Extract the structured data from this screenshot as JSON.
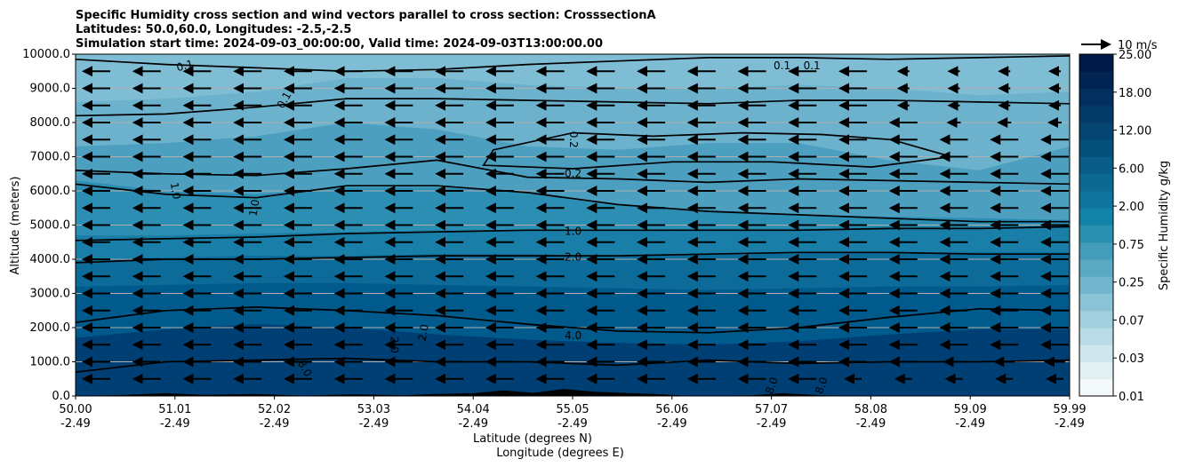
{
  "chart_data": {
    "type": "contour",
    "title": [
      "Specific Humidity cross section and wind vectors parallel to cross section: CrosssectionA",
      "Latitudes: 50.0,60.0, Longitudes: -2.5,-2.5",
      "Simulation start time: 2024-09-03_00:00:00, Valid time: 2024-09-03T13:00:00.00"
    ],
    "ylabel": "Altitude (meters)",
    "xlabel_lat": "Latitude (degrees N)",
    "xlabel_lon": "Longitude (degrees E)",
    "ylim": [
      0,
      10000
    ],
    "xlim": [
      50.0,
      59.99
    ],
    "y_ticks": [
      "0.0",
      "1000.0",
      "2000.0",
      "3000.0",
      "4000.0",
      "5000.0",
      "6000.0",
      "7000.0",
      "8000.0",
      "9000.0",
      "10000.0"
    ],
    "x_ticks": [
      {
        "lat": "50.00",
        "lon": "-2.49"
      },
      {
        "lat": "51.01",
        "lon": "-2.49"
      },
      {
        "lat": "52.02",
        "lon": "-2.49"
      },
      {
        "lat": "53.03",
        "lon": "-2.49"
      },
      {
        "lat": "54.04",
        "lon": "-2.49"
      },
      {
        "lat": "55.05",
        "lon": "-2.49"
      },
      {
        "lat": "56.06",
        "lon": "-2.49"
      },
      {
        "lat": "57.07",
        "lon": "-2.49"
      },
      {
        "lat": "58.08",
        "lon": "-2.49"
      },
      {
        "lat": "59.09",
        "lon": "-2.49"
      },
      {
        "lat": "59.99",
        "lon": "-2.49"
      }
    ],
    "grid": "horizontal",
    "colorbar": {
      "label": "Specific Humidity g/kg",
      "ticks": [
        "0.01",
        "0.03",
        "0.07",
        "0.25",
        "0.75",
        "2.00",
        "6.00",
        "12.00",
        "18.00",
        "25.00"
      ],
      "colors": [
        "#f4fafb",
        "#e2f0f3",
        "#cfe6ec",
        "#b9dbe5",
        "#a2cfdd",
        "#8ac3d5",
        "#72b6cd",
        "#5aa9c3",
        "#439cb9",
        "#2b8fb0",
        "#1382a7",
        "#0f759c",
        "#0b6992",
        "#085c87",
        "#06517c",
        "#044571",
        "#033a67",
        "#022f5d",
        "#012452",
        "#001a48"
      ]
    },
    "wind_key": {
      "label": "10 m/s",
      "speed": 10
    },
    "contour_lines": [
      {
        "level": "0.1",
        "z": [
          9850,
          9700,
          9600,
          9500,
          9550,
          9700,
          9800,
          9900,
          9900,
          9850,
          9900,
          9950
        ]
      },
      {
        "level": "0.1",
        "z": [
          8200,
          8250,
          8450,
          8700,
          8700,
          8650,
          8600,
          8550,
          8650,
          8650,
          8600,
          8550
        ]
      },
      {
        "level": "0.2",
        "z": [
          6600,
          6500,
          6450,
          6650,
          6900,
          6400,
          6350,
          6250,
          6350,
          6300,
          6250,
          6200
        ]
      },
      {
        "level": "1.0",
        "z": [
          6200,
          5900,
          5800,
          6150,
          6150,
          5950,
          5600,
          5400,
          5300,
          5200,
          5100,
          5100
        ]
      },
      {
        "level": "1.0",
        "z": [
          4550,
          4600,
          4650,
          4750,
          4800,
          4850,
          4850,
          4850,
          4850,
          4900,
          4900,
          4950
        ]
      },
      {
        "level": "2.0",
        "z": [
          3900,
          4000,
          4000,
          4050,
          4100,
          4100,
          4100,
          4150,
          4200,
          4200,
          4150,
          4150
        ]
      },
      {
        "level": "4.0",
        "z": [
          2150,
          2500,
          2600,
          2500,
          2350,
          2100,
          1900,
          1850,
          2000,
          2300,
          2550,
          2500
        ]
      },
      {
        "level": "8.0",
        "z": [
          700,
          1000,
          1050,
          1100,
          1000,
          1000,
          900,
          1050,
          950,
          1000,
          1000,
          1050
        ]
      }
    ],
    "contour_labels": [
      {
        "text": "0.1",
        "x": 51.1,
        "y": 9650,
        "rot": -15
      },
      {
        "text": "0.1",
        "x": 52.1,
        "y": 8650,
        "rot": -60
      },
      {
        "text": "0.1",
        "x": 57.1,
        "y": 9650,
        "rot": 0
      },
      {
        "text": "0.1",
        "x": 57.4,
        "y": 9650,
        "rot": 0
      },
      {
        "text": "0.2",
        "x": 55.0,
        "y": 7500,
        "rot": 90
      },
      {
        "text": "0.2",
        "x": 55.0,
        "y": 6500,
        "rot": 0
      },
      {
        "text": "1.0",
        "x": 51.0,
        "y": 6000,
        "rot": 80
      },
      {
        "text": "1.0",
        "x": 51.8,
        "y": 5500,
        "rot": -80
      },
      {
        "text": "1.0",
        "x": 55.0,
        "y": 4800,
        "rot": 0
      },
      {
        "text": "2.0",
        "x": 55.0,
        "y": 4050,
        "rot": 0
      },
      {
        "text": "4.0",
        "x": 55.0,
        "y": 1750,
        "rot": 0
      },
      {
        "text": "2.0",
        "x": 53.2,
        "y": 1500,
        "rot": 90
      },
      {
        "text": "2.0",
        "x": 53.5,
        "y": 1850,
        "rot": -80
      },
      {
        "text": "8.0",
        "x": 52.3,
        "y": 800,
        "rot": 60
      },
      {
        "text": "8.0",
        "x": 57.0,
        "y": 300,
        "rot": -70
      },
      {
        "text": "8.0",
        "x": 57.5,
        "y": 300,
        "rot": -70
      }
    ],
    "terrain_note": "black terrain profile along the bottom edge"
  }
}
